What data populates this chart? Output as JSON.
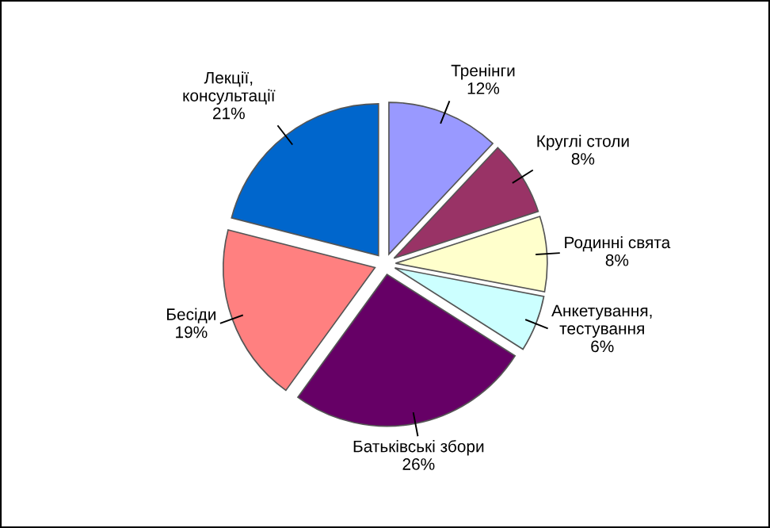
{
  "chart_data": {
    "type": "pie",
    "categories": [
      "Тренінги",
      "Круглі столи",
      "Родинні свята",
      "Анкетування,\nтестування",
      "Батьківські збори",
      "Бесіди",
      "Лекції,\nконсультації"
    ],
    "values": [
      12,
      8,
      8,
      6,
      26,
      19,
      21
    ],
    "value_labels": [
      "12%",
      "8%",
      "8%",
      "6%",
      "26%",
      "19%",
      "21%"
    ],
    "colors": [
      "#9999ff",
      "#993366",
      "#ffffcc",
      "#ccffff",
      "#660066",
      "#ff8080",
      "#0066cc"
    ]
  }
}
